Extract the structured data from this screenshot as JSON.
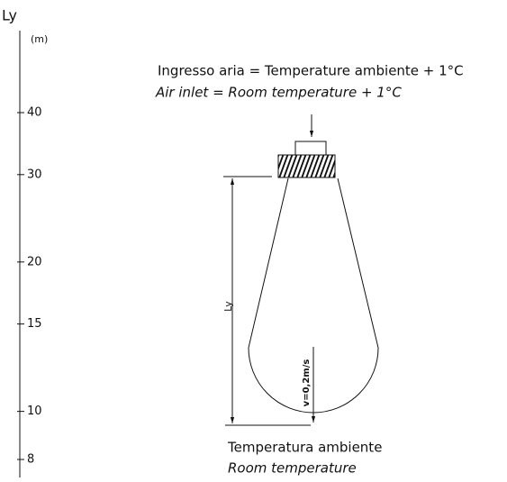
{
  "axis": {
    "label": "Ly",
    "unit": "(m)",
    "log": true,
    "ticks": [
      40,
      30,
      20,
      15,
      10,
      8
    ]
  },
  "inlet": {
    "line1": "Ingresso aria = Temperature ambiente + 1°C",
    "line2": "Air inlet = Room temperature + 1°C"
  },
  "dimension_label": "Ly",
  "velocity_label": "v=0,2m/s",
  "ambient": {
    "line1": "Temperatura ambiente",
    "line2": "Room temperature"
  }
}
